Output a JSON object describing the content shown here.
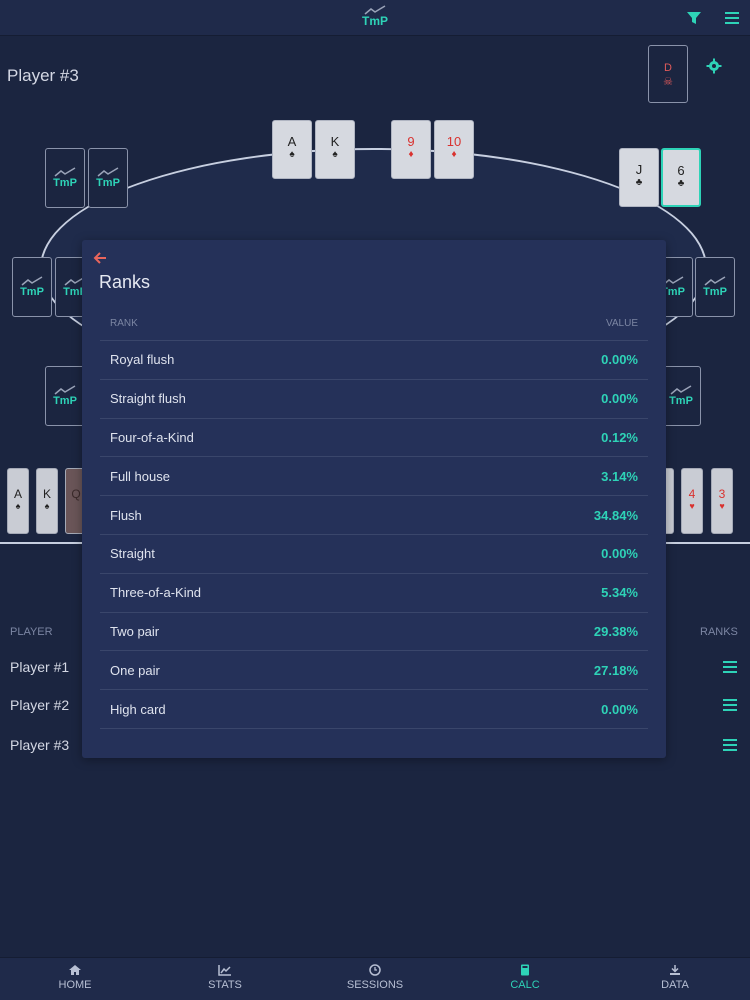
{
  "app": {
    "logo_text": "TmP",
    "brand_color": "#2ed3b7"
  },
  "header": {
    "player_title": "Player #3",
    "dealer_label": "D"
  },
  "board_cards": [
    {
      "rank": "A",
      "suit": "♠",
      "color": "black"
    },
    {
      "rank": "K",
      "suit": "♠",
      "color": "black"
    },
    {
      "rank": "9",
      "suit": "♦",
      "color": "red"
    },
    {
      "rank": "10",
      "suit": "♦",
      "color": "red"
    }
  ],
  "hero_cards": [
    {
      "rank": "J",
      "suit": "♣",
      "color": "black"
    },
    {
      "rank": "6",
      "suit": "♣",
      "color": "black"
    }
  ],
  "seat_label": "TmP",
  "deck_left": [
    {
      "rank": "A",
      "suit": "♠"
    },
    {
      "rank": "K",
      "suit": "♠"
    },
    {
      "rank": "Q",
      "suit": ""
    }
  ],
  "deck_right": [
    {
      "rank": "4",
      "suit": "♥"
    },
    {
      "rank": "3",
      "suit": "♥"
    }
  ],
  "players_table": {
    "player_header": "PLAYER",
    "ranks_header": "RANKS",
    "rows": [
      "Player #1",
      "Player #2",
      "Player #3"
    ]
  },
  "modal": {
    "title": "Ranks",
    "col_rank": "RANK",
    "col_value": "VALUE",
    "rows": [
      {
        "name": "Royal flush",
        "value": "0.00%"
      },
      {
        "name": "Straight flush",
        "value": "0.00%"
      },
      {
        "name": "Four-of-a-Kind",
        "value": "0.12%"
      },
      {
        "name": "Full house",
        "value": "3.14%"
      },
      {
        "name": "Flush",
        "value": "34.84%"
      },
      {
        "name": "Straight",
        "value": "0.00%"
      },
      {
        "name": "Three-of-a-Kind",
        "value": "5.34%"
      },
      {
        "name": "Two pair",
        "value": "29.38%"
      },
      {
        "name": "One pair",
        "value": "27.18%"
      },
      {
        "name": "High card",
        "value": "0.00%"
      }
    ]
  },
  "nav": [
    {
      "label": "HOME",
      "icon": "home-icon",
      "active": false
    },
    {
      "label": "STATS",
      "icon": "stats-icon",
      "active": false
    },
    {
      "label": "SESSIONS",
      "icon": "clock-icon",
      "active": false
    },
    {
      "label": "CALC",
      "icon": "calculator-icon",
      "active": true
    },
    {
      "label": "DATA",
      "icon": "download-icon",
      "active": false
    }
  ]
}
